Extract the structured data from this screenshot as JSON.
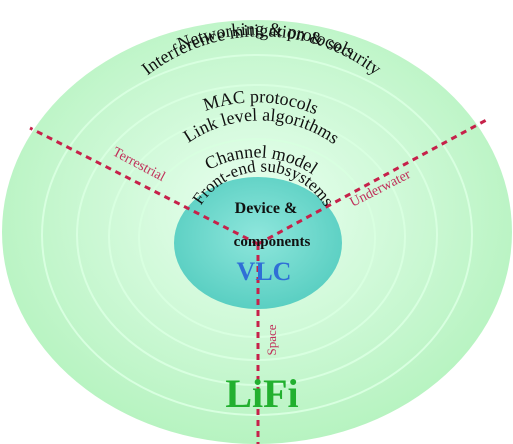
{
  "layers": [
    "Networking & protocols",
    "Interference mitigation & security",
    "MAC protocols",
    "Link level algorithms",
    "Channel model",
    "Front-end subsystems"
  ],
  "core": {
    "line1": "Device &",
    "line2": "components",
    "label": "VLC"
  },
  "outer_label": "LiFi",
  "domains": {
    "terrestrial": "Terrestrial",
    "underwater": "Underwater",
    "space": "Space"
  },
  "colors": {
    "outer_ring": "#b6f4be",
    "inner_core": "#64d6c8",
    "vlc": "#2f6fd6",
    "lifi": "#22b02f",
    "dash": "#c6214a"
  }
}
